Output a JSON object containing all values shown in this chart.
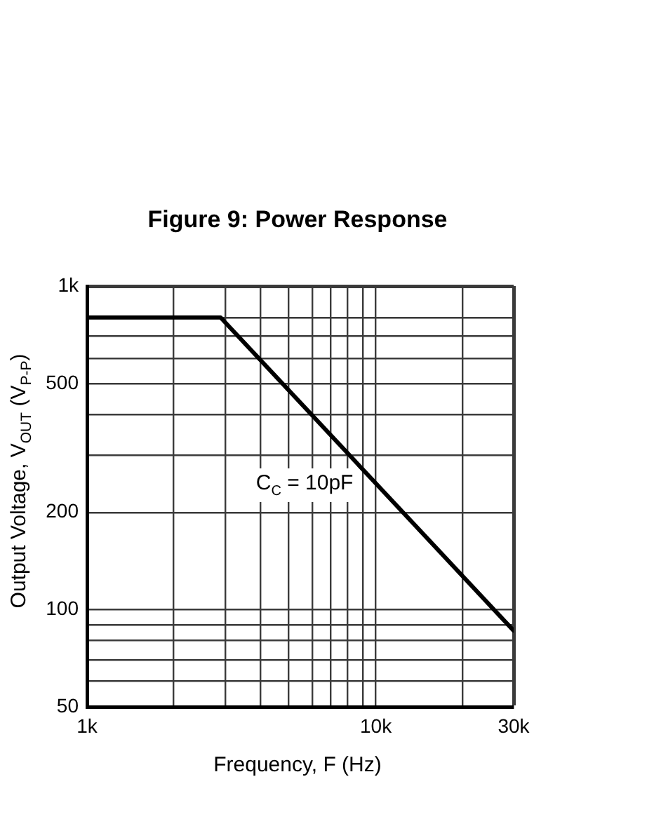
{
  "chart_data": {
    "type": "line",
    "title": "Figure 9: Power Response",
    "xlabel": "Frequency, F (Hz)",
    "ylabel": "Output Voltage, V$_{OUT}$ (V$_{P-P}$)",
    "annotations": [
      "C$_{C}$ = 10pF"
    ],
    "x": [
      1000,
      2900,
      30000
    ],
    "series": [
      {
        "color": "#000000",
        "values": [
          800,
          800,
          86
        ]
      }
    ],
    "log": "xy",
    "xlim": [
      1000,
      30000
    ],
    "ylim": [
      50,
      1000
    ],
    "xticks": [
      {
        "value": 1000,
        "label": "1k"
      },
      {
        "value": 2000,
        "label": null
      },
      {
        "value": 3000,
        "label": null
      },
      {
        "value": 4000,
        "label": null
      },
      {
        "value": 5000,
        "label": null
      },
      {
        "value": 6000,
        "label": null
      },
      {
        "value": 7000,
        "label": null
      },
      {
        "value": 8000,
        "label": null
      },
      {
        "value": 9000,
        "label": null
      },
      {
        "value": 10000,
        "label": "10k"
      },
      {
        "value": 20000,
        "label": null
      },
      {
        "value": 30000,
        "label": "30k"
      }
    ],
    "yticks": [
      50,
      {
        "value": 60,
        "label": null
      },
      {
        "value": 70,
        "label": null
      },
      {
        "value": 80,
        "label": null
      },
      {
        "value": 90,
        "label": null
      },
      100,
      200,
      {
        "value": 300,
        "label": null
      },
      {
        "value": 400,
        "label": null
      },
      500,
      {
        "value": 600,
        "label": null
      },
      {
        "value": 700,
        "label": null
      },
      {
        "value": 800,
        "label": null
      },
      {
        "value": 1000,
        "label": "1k"
      }
    ],
    "grid": true,
    "marker": "none",
    "line_style": "solid"
  }
}
